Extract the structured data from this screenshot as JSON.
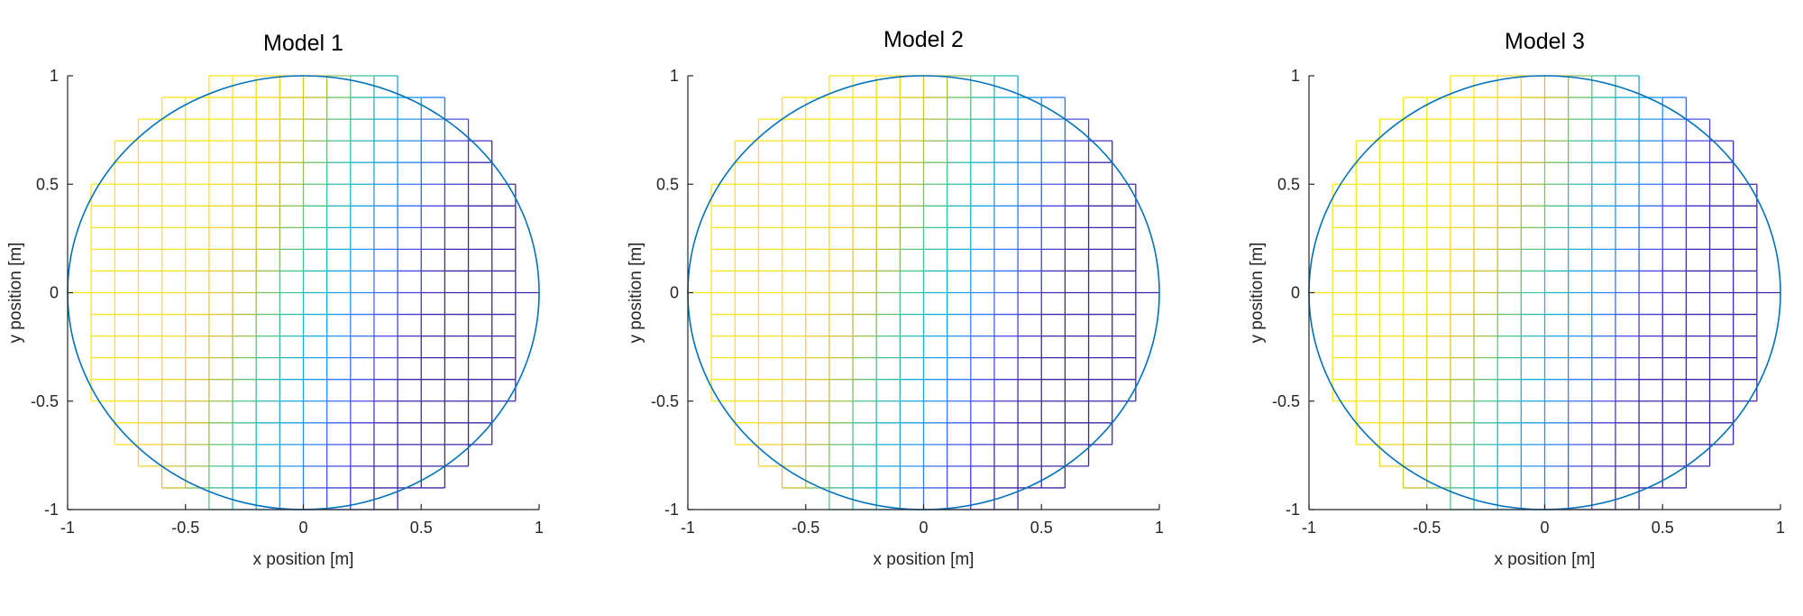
{
  "chart_data": [
    {
      "type": "heatmap",
      "title": "Model 1",
      "xlabel": "x position [m]",
      "ylabel": "y position [m]",
      "xlim": [
        -1,
        1
      ],
      "ylim": [
        -1,
        1
      ],
      "xticks": [
        "-1",
        "-0.5",
        "0",
        "0.5",
        "1"
      ],
      "yticks": [
        "-1",
        "-0.5",
        "0",
        "0.5",
        "1"
      ],
      "grid": false,
      "boundary": {
        "shape": "circle",
        "center": [
          0,
          0
        ],
        "radius": 1,
        "color": "#0072BD"
      },
      "mesh": {
        "cell_size": 0.1,
        "row_half_widths": [
          0.4,
          0.6,
          0.7,
          0.8,
          0.8,
          0.9,
          0.9,
          0.9,
          0.9,
          0.9,
          0.9,
          0.9,
          0.9,
          0.9,
          0.9,
          0.8,
          0.8,
          0.7,
          0.6,
          0.4
        ]
      },
      "colormap": "parula"
    },
    {
      "type": "heatmap",
      "title": "Model 2",
      "xlabel": "x position [m]",
      "ylabel": "y position [m]",
      "xlim": [
        -1,
        1
      ],
      "ylim": [
        -1,
        1
      ],
      "xticks": [
        "-1",
        "-0.5",
        "0",
        "0.5",
        "1"
      ],
      "yticks": [
        "-1",
        "-0.5",
        "0",
        "0.5",
        "1"
      ],
      "grid": false,
      "boundary": {
        "shape": "circle",
        "center": [
          0,
          0
        ],
        "radius": 1,
        "color": "#0072BD"
      },
      "mesh": {
        "cell_size": 0.1,
        "row_half_widths": [
          0.4,
          0.6,
          0.7,
          0.8,
          0.8,
          0.9,
          0.9,
          0.9,
          0.9,
          0.9,
          0.9,
          0.9,
          0.9,
          0.9,
          0.9,
          0.8,
          0.8,
          0.7,
          0.6,
          0.4
        ]
      },
      "colormap": "parula"
    },
    {
      "type": "heatmap",
      "title": "Model 3",
      "xlabel": "x position [m]",
      "ylabel": "y position [m]",
      "xlim": [
        -1,
        1
      ],
      "ylim": [
        -1,
        1
      ],
      "xticks": [
        "-1",
        "-0.5",
        "0",
        "0.5",
        "1"
      ],
      "yticks": [
        "-1",
        "-0.5",
        "0",
        "0.5",
        "1"
      ],
      "grid": false,
      "boundary": {
        "shape": "circle",
        "center": [
          0,
          0
        ],
        "radius": 1,
        "color": "#0072BD"
      },
      "mesh": {
        "cell_size": 0.1,
        "row_half_widths": [
          0.4,
          0.6,
          0.7,
          0.8,
          0.8,
          0.9,
          0.9,
          0.9,
          0.9,
          0.9,
          0.9,
          0.9,
          0.9,
          0.9,
          0.9,
          0.8,
          0.8,
          0.7,
          0.6,
          0.4
        ]
      },
      "colormap": "parula"
    }
  ],
  "colors": {
    "axis": "#262626",
    "boundary": "#0072BD",
    "colormap_stops": [
      "#3E26A8",
      "#4747EB",
      "#2E87F7",
      "#12B0D9",
      "#4CC38B",
      "#C8C031",
      "#F9D22B",
      "#FBE61D"
    ]
  }
}
